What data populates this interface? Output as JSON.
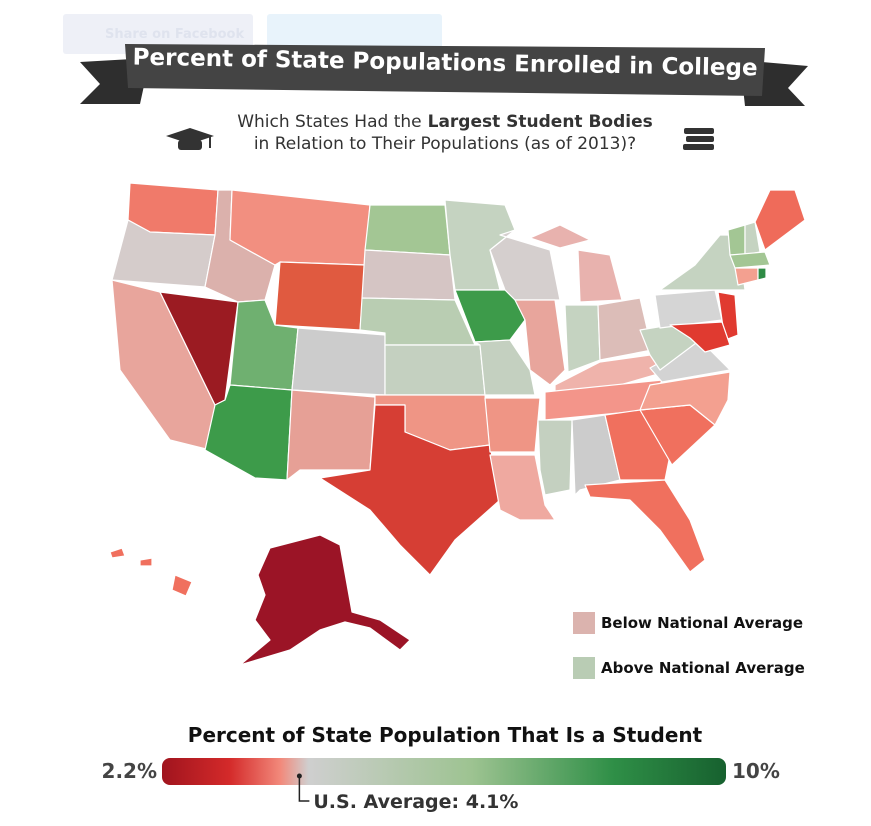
{
  "header": {
    "share_button": "Share on Facebook",
    "title": "Percent of State Populations Enrolled in College"
  },
  "subtitle": {
    "line1_before": "Which States Had the",
    "line1_bold": "Largest Student Bodies",
    "line2": "in Relation to Their Populations (as of 2013)?"
  },
  "legend": {
    "items": [
      {
        "label": "Below National Average",
        "color": "#dbb3ae"
      },
      {
        "label": "Above National Average",
        "color": "#b9ccb4"
      }
    ]
  },
  "colorbar": {
    "title": "Percent of State Population That Is a Student",
    "min": {
      "value": 2.2,
      "label": "2.2%"
    },
    "max": {
      "value": 10,
      "label": "10%"
    },
    "average": {
      "value": 4.1,
      "label": "U.S. Average: 4.1%"
    }
  }
}
